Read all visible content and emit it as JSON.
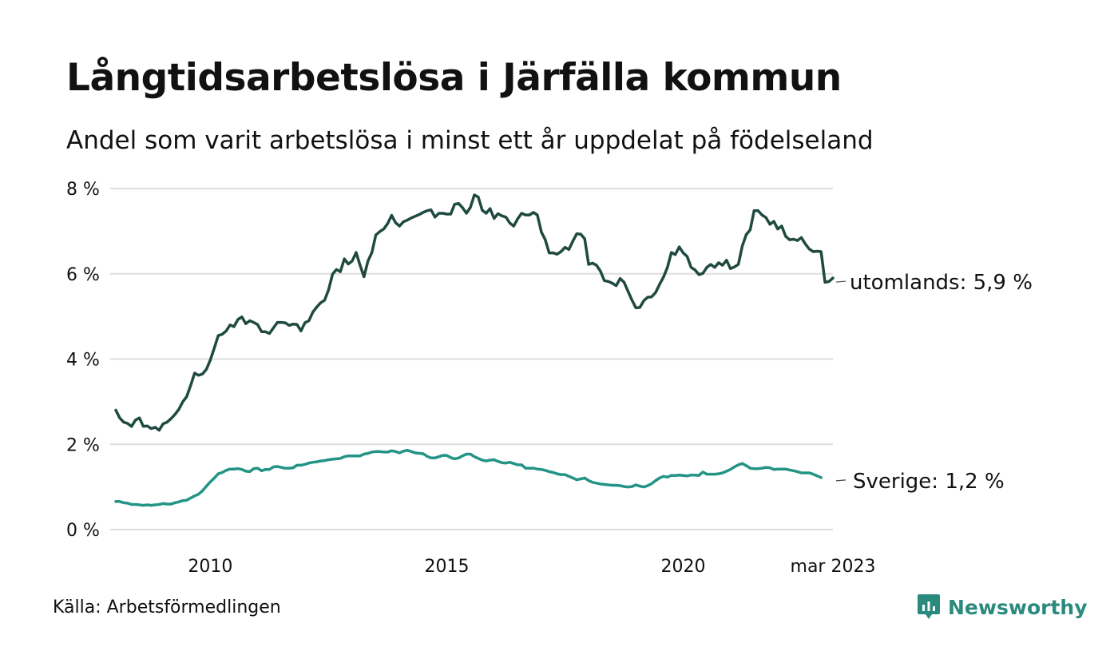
{
  "title": "Långtidsarbetslösa i Järfälla kommun",
  "subtitle": "Andel som varit arbetslösa i minst ett år uppdelat på födelseland",
  "source": "Källa: Arbetsförmedlingen",
  "brand": {
    "name": "Newsworthy",
    "icon": "newsworthy-logo-icon",
    "color": "#2b8a7e"
  },
  "colors": {
    "utomlands": "#1f4a40",
    "sverige": "#239485",
    "grid": "#dddddd",
    "text": "#111111"
  },
  "chart_data": {
    "type": "line",
    "x_unit": "year (decimal, monthly data)",
    "x_start": 2008.0,
    "x_step": 0.08333,
    "x_end_label": "mar 2023",
    "xticks": [
      2010,
      2015,
      2020
    ],
    "xtick_labels": [
      "2010",
      "2015",
      "2020"
    ],
    "ylim": [
      0,
      8
    ],
    "yticks": [
      0,
      2,
      4,
      6,
      8
    ],
    "ytick_labels": [
      "0 %",
      "2 %",
      "4 %",
      "6 %",
      "8 %"
    ],
    "grid": true,
    "series": [
      {
        "name": "utomlands",
        "end_label": "utomlands: 5,9 %",
        "color": "#1f4a40",
        "values": [
          2.8,
          2.62,
          2.52,
          2.49,
          2.42,
          2.57,
          2.62,
          2.42,
          2.43,
          2.37,
          2.4,
          2.33,
          2.48,
          2.52,
          2.6,
          2.7,
          2.82,
          3.0,
          3.12,
          3.38,
          3.67,
          3.62,
          3.65,
          3.76,
          3.98,
          4.26,
          4.55,
          4.58,
          4.66,
          4.8,
          4.76,
          4.93,
          4.99,
          4.83,
          4.9,
          4.86,
          4.81,
          4.64,
          4.64,
          4.6,
          4.73,
          4.86,
          4.86,
          4.85,
          4.79,
          4.82,
          4.81,
          4.66,
          4.85,
          4.9,
          5.1,
          5.22,
          5.32,
          5.38,
          5.62,
          5.99,
          6.1,
          6.05,
          6.35,
          6.23,
          6.3,
          6.5,
          6.2,
          5.93,
          6.3,
          6.5,
          6.91,
          6.99,
          7.05,
          7.18,
          7.37,
          7.2,
          7.12,
          7.22,
          7.26,
          7.31,
          7.35,
          7.39,
          7.44,
          7.48,
          7.5,
          7.33,
          7.42,
          7.42,
          7.4,
          7.4,
          7.63,
          7.65,
          7.55,
          7.42,
          7.56,
          7.85,
          7.8,
          7.49,
          7.42,
          7.53,
          7.3,
          7.41,
          7.36,
          7.33,
          7.19,
          7.12,
          7.29,
          7.42,
          7.38,
          7.38,
          7.44,
          7.38,
          6.98,
          6.8,
          6.49,
          6.49,
          6.46,
          6.52,
          6.62,
          6.57,
          6.77,
          6.94,
          6.93,
          6.82,
          6.22,
          6.25,
          6.2,
          6.06,
          5.84,
          5.82,
          5.78,
          5.72,
          5.89,
          5.8,
          5.59,
          5.38,
          5.2,
          5.21,
          5.37,
          5.45,
          5.46,
          5.56,
          5.75,
          5.92,
          6.15,
          6.5,
          6.45,
          6.63,
          6.49,
          6.41,
          6.15,
          6.09,
          5.98,
          6.01,
          6.15,
          6.22,
          6.15,
          6.26,
          6.2,
          6.32,
          6.12,
          6.16,
          6.22,
          6.65,
          6.92,
          7.03,
          7.48,
          7.48,
          7.38,
          7.32,
          7.16,
          7.23,
          7.05,
          7.12,
          6.88,
          6.8,
          6.81,
          6.78,
          6.85,
          6.7,
          6.58,
          6.52,
          6.53,
          6.52,
          5.8,
          5.82,
          5.9
        ]
      },
      {
        "name": "Sverige",
        "end_label": "Sverige: 1,2 %",
        "color": "#239485",
        "values": [
          0.66,
          0.66,
          0.63,
          0.62,
          0.59,
          0.59,
          0.58,
          0.57,
          0.58,
          0.57,
          0.58,
          0.59,
          0.61,
          0.6,
          0.6,
          0.63,
          0.65,
          0.68,
          0.69,
          0.74,
          0.79,
          0.83,
          0.91,
          1.02,
          1.12,
          1.21,
          1.31,
          1.34,
          1.39,
          1.42,
          1.42,
          1.43,
          1.41,
          1.37,
          1.36,
          1.43,
          1.44,
          1.38,
          1.41,
          1.41,
          1.47,
          1.48,
          1.46,
          1.44,
          1.44,
          1.45,
          1.51,
          1.51,
          1.53,
          1.56,
          1.58,
          1.59,
          1.61,
          1.62,
          1.64,
          1.65,
          1.66,
          1.67,
          1.71,
          1.73,
          1.73,
          1.73,
          1.73,
          1.77,
          1.79,
          1.82,
          1.83,
          1.83,
          1.82,
          1.82,
          1.85,
          1.83,
          1.8,
          1.84,
          1.86,
          1.83,
          1.8,
          1.79,
          1.78,
          1.72,
          1.68,
          1.68,
          1.71,
          1.74,
          1.74,
          1.69,
          1.66,
          1.68,
          1.73,
          1.77,
          1.77,
          1.71,
          1.67,
          1.63,
          1.61,
          1.63,
          1.64,
          1.6,
          1.57,
          1.56,
          1.58,
          1.55,
          1.52,
          1.52,
          1.44,
          1.44,
          1.44,
          1.42,
          1.41,
          1.39,
          1.36,
          1.34,
          1.31,
          1.29,
          1.29,
          1.25,
          1.21,
          1.17,
          1.19,
          1.21,
          1.15,
          1.11,
          1.09,
          1.07,
          1.06,
          1.05,
          1.04,
          1.04,
          1.03,
          1.01,
          1.0,
          1.01,
          1.05,
          1.02,
          1.0,
          1.03,
          1.08,
          1.15,
          1.21,
          1.25,
          1.23,
          1.27,
          1.27,
          1.28,
          1.27,
          1.26,
          1.28,
          1.28,
          1.27,
          1.35,
          1.3,
          1.3,
          1.3,
          1.31,
          1.33,
          1.37,
          1.41,
          1.47,
          1.52,
          1.55,
          1.5,
          1.44,
          1.43,
          1.43,
          1.44,
          1.46,
          1.45,
          1.41,
          1.42,
          1.42,
          1.42,
          1.4,
          1.38,
          1.36,
          1.33,
          1.33,
          1.33,
          1.3,
          1.26,
          1.22
        ]
      }
    ]
  }
}
